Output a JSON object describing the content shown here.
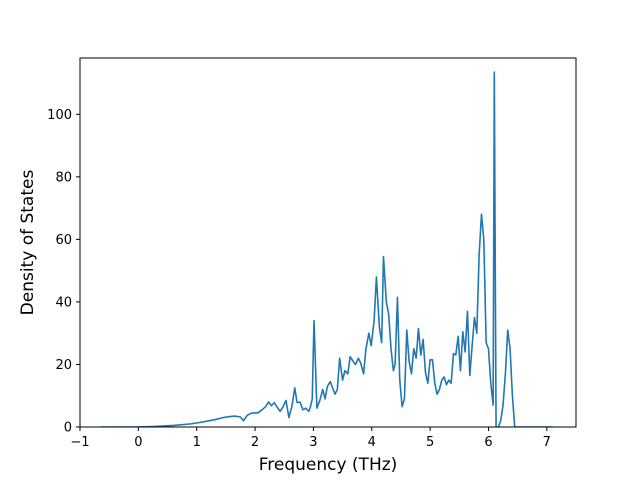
{
  "chart_data": {
    "type": "line",
    "title": "",
    "xlabel": "Frequency (THz)",
    "ylabel": "Density of States",
    "xlim": [
      -1.0,
      7.5
    ],
    "ylim": [
      0,
      118
    ],
    "xticks": [
      -1,
      0,
      1,
      2,
      3,
      4,
      5,
      6,
      7
    ],
    "yticks": [
      0,
      20,
      40,
      60,
      80,
      100
    ],
    "grid": false,
    "legend": "none",
    "series": [
      {
        "color": "#1f77b4",
        "x": [
          -0.65,
          -0.2,
          0.0,
          0.3,
          0.6,
          0.9,
          1.1,
          1.3,
          1.45,
          1.55,
          1.65,
          1.75,
          1.8,
          1.87,
          1.95,
          2.05,
          2.12,
          2.18,
          2.23,
          2.28,
          2.33,
          2.38,
          2.43,
          2.48,
          2.53,
          2.58,
          2.63,
          2.68,
          2.72,
          2.77,
          2.82,
          2.87,
          2.92,
          2.95,
          2.98,
          3.01,
          3.06,
          3.11,
          3.16,
          3.2,
          3.24,
          3.29,
          3.34,
          3.37,
          3.41,
          3.45,
          3.5,
          3.54,
          3.59,
          3.63,
          3.68,
          3.72,
          3.77,
          3.81,
          3.86,
          3.9,
          3.95,
          3.99,
          4.04,
          4.08,
          4.13,
          4.17,
          4.2,
          4.25,
          4.29,
          4.33,
          4.37,
          4.4,
          4.44,
          4.48,
          4.52,
          4.56,
          4.6,
          4.64,
          4.68,
          4.72,
          4.76,
          4.8,
          4.84,
          4.88,
          4.92,
          4.96,
          5.0,
          5.04,
          5.08,
          5.12,
          5.16,
          5.2,
          5.24,
          5.28,
          5.32,
          5.36,
          5.4,
          5.44,
          5.48,
          5.52,
          5.56,
          5.6,
          5.64,
          5.68,
          5.72,
          5.76,
          5.8,
          5.84,
          5.88,
          5.92,
          5.96,
          6.0,
          6.04,
          6.08,
          6.1,
          6.13,
          6.17,
          6.21,
          6.25,
          6.29,
          6.33,
          6.37,
          6.41,
          6.45,
          6.5,
          6.6,
          7.1
        ],
        "y": [
          0,
          0,
          0,
          0.2,
          0.5,
          1.0,
          1.6,
          2.3,
          3.0,
          3.3,
          3.5,
          3.2,
          2.0,
          3.8,
          4.5,
          4.5,
          5.5,
          6.5,
          8.0,
          6.8,
          7.8,
          6.3,
          5.0,
          6.5,
          8.5,
          3.0,
          6.5,
          12.5,
          7.8,
          8.0,
          5.5,
          6.0,
          5.0,
          6.5,
          9.0,
          34.0,
          6.0,
          8.5,
          12.0,
          9.0,
          13.0,
          14.5,
          12.0,
          10.5,
          12.0,
          22.0,
          15.0,
          18.0,
          17.0,
          22.5,
          21.0,
          20.0,
          22.0,
          20.5,
          17.0,
          25.0,
          30.0,
          26.0,
          34.0,
          48.0,
          32.0,
          27.0,
          54.5,
          40.0,
          36.0,
          25.0,
          18.0,
          20.0,
          41.5,
          15.0,
          6.5,
          9.0,
          31.0,
          21.0,
          17.0,
          25.0,
          22.0,
          31.5,
          23.0,
          28.0,
          17.5,
          14.0,
          21.5,
          21.5,
          14.0,
          10.5,
          12.0,
          15.0,
          16.0,
          13.5,
          15.0,
          14.0,
          23.5,
          23.0,
          29.0,
          18.0,
          30.5,
          24.0,
          37.0,
          16.5,
          26.0,
          35.0,
          30.0,
          55.0,
          68.0,
          60.0,
          27.0,
          25.0,
          14.0,
          7.0,
          113.5,
          0.0,
          0.0,
          2.0,
          7.0,
          17.0,
          31.0,
          25.0,
          10.0,
          0.0,
          0.0,
          0.0,
          0.0
        ]
      }
    ]
  }
}
